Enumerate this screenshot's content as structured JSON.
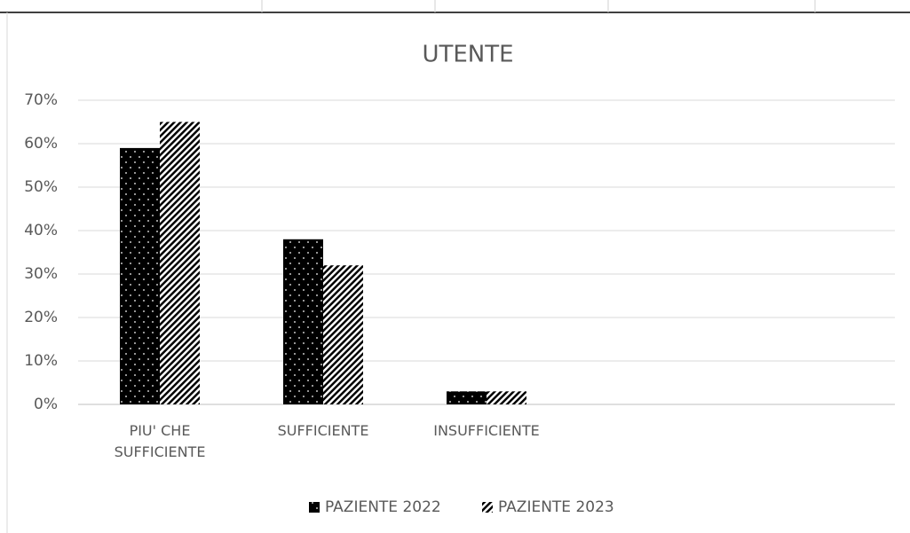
{
  "chart_data": {
    "type": "bar",
    "title": "UTENTE",
    "categories": [
      "PIU' CHE SUFFICIENTE",
      "SUFFICIENTE",
      "INSUFFICIENTE",
      null,
      null
    ],
    "series": [
      {
        "name": "PAZIENTE 2022",
        "color": "#000000",
        "pattern": "dots",
        "values": [
          59,
          38,
          3,
          null,
          null
        ]
      },
      {
        "name": "PAZIENTE 2023",
        "color": "#000000",
        "pattern": "stripes",
        "values": [
          65,
          32,
          3,
          null,
          null
        ]
      }
    ],
    "ylim": [
      0,
      70
    ],
    "yticks": [
      {
        "value": 0,
        "label": "0%"
      },
      {
        "value": 10,
        "label": "10%"
      },
      {
        "value": 20,
        "label": "20%"
      },
      {
        "value": 30,
        "label": "30%"
      },
      {
        "value": 40,
        "label": "40%"
      },
      {
        "value": 50,
        "label": "50%"
      },
      {
        "value": 60,
        "label": "60%"
      },
      {
        "value": 70,
        "label": "70%"
      }
    ],
    "grid": true,
    "legend": "bottom"
  }
}
